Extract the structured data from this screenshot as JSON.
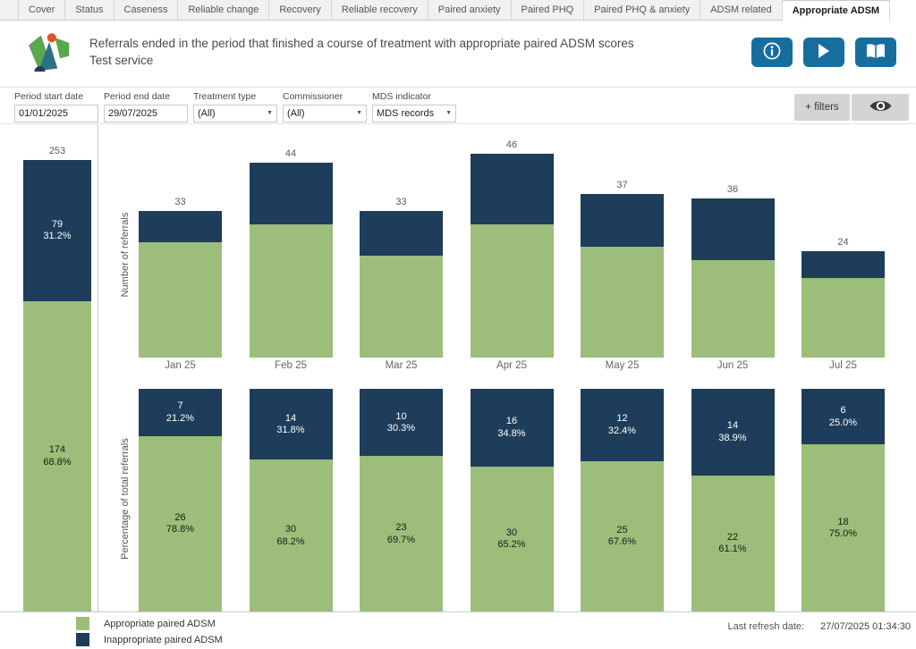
{
  "tabs": {
    "active_index": 10,
    "items": [
      {
        "label": "Cover"
      },
      {
        "label": "Status"
      },
      {
        "label": "Caseness"
      },
      {
        "label": "Reliable change"
      },
      {
        "label": "Recovery"
      },
      {
        "label": "Reliable recovery"
      },
      {
        "label": "Paired anxiety"
      },
      {
        "label": "Paired PHQ"
      },
      {
        "label": "Paired PHQ & anxiety"
      },
      {
        "label": "ADSM related"
      },
      {
        "label": "Appropriate ADSM"
      }
    ]
  },
  "header": {
    "title": "Referrals ended in the period that finished a course of treatment with appropriate paired ADSM scores",
    "subtitle": "Test service",
    "accent_blue": "#176e9e",
    "buttons": [
      {
        "name": "info-button",
        "icon": "info-icon"
      },
      {
        "name": "play-button",
        "icon": "play-icon"
      },
      {
        "name": "guide-button",
        "icon": "book-icon"
      }
    ]
  },
  "filters": {
    "fields": [
      {
        "label": "Period start date",
        "value": "01/01/2025",
        "type": "text"
      },
      {
        "label": "Period end date",
        "value": "29/07/2025",
        "type": "text"
      },
      {
        "label": "Treatment type",
        "value": "(All)",
        "type": "dropdown"
      },
      {
        "label": "Commissioner",
        "value": "(All)",
        "type": "dropdown"
      },
      {
        "label": "MDS indicator",
        "value": "MDS records",
        "type": "dropdown"
      }
    ],
    "more_label": "+ filters",
    "eye_button": "show-hide"
  },
  "chart_data": {
    "type": "bar",
    "stacked": true,
    "months": [
      "Jan 25",
      "Feb 25",
      "Mar 25",
      "Apr 25",
      "May 25",
      "Jun 25",
      "Jul 25"
    ],
    "ylabel_counts": "Number of referrals",
    "ylabel_pct": "Percentage of total referrals",
    "legend_position": "bottom-left",
    "grid": false,
    "series": [
      {
        "name": "Appropriate paired ADSM",
        "color": "#9cbe7a",
        "counts": [
          26,
          30,
          23,
          30,
          25,
          22,
          18
        ],
        "pct": [
          "78.8%",
          "68.2%",
          "69.7%",
          "65.2%",
          "67.6%",
          "61.1%",
          "75.0%"
        ]
      },
      {
        "name": "Inappropriate paired ADSM",
        "color": "#1e3d5a",
        "counts": [
          7,
          14,
          10,
          16,
          12,
          14,
          6
        ],
        "pct": [
          "21.2%",
          "31.8%",
          "30.3%",
          "34.8%",
          "32.4%",
          "38.9%",
          "25.0%"
        ]
      }
    ],
    "totals": [
      33,
      44,
      33,
      46,
      37,
      36,
      24
    ],
    "overall": {
      "total": 253,
      "appropriate_count": 174,
      "appropriate_pct": "68.8%",
      "inappropriate_count": 79,
      "inappropriate_pct": "31.2%"
    }
  },
  "footer": {
    "refresh_label": "Last refresh date:",
    "refresh_value": "27/07/2025 01:34:30"
  }
}
